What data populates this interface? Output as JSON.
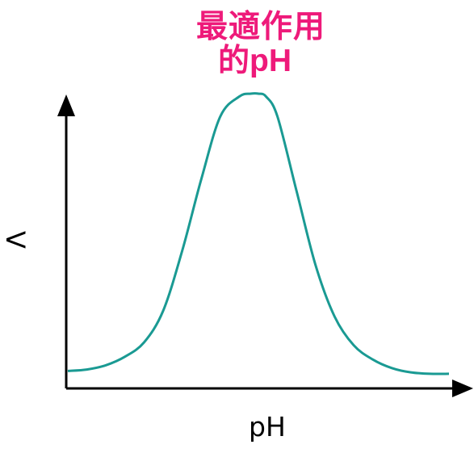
{
  "chart_data": {
    "type": "line",
    "annotation": {
      "line1": "最適作用",
      "line2_prefix": "的",
      "line2_latin": "pH"
    },
    "xlabel": "pH",
    "ylabel": "V",
    "series_color": "#1a9a93",
    "annotation_color": "#ee1a7a",
    "axis_color": "#000000",
    "x_range": [
      0,
      1
    ],
    "y_range": [
      0,
      1
    ],
    "series": [
      {
        "x": [
          0.0,
          0.05,
          0.1,
          0.15,
          0.2,
          0.25,
          0.3,
          0.35,
          0.4,
          0.45,
          0.48,
          0.5,
          0.52,
          0.55,
          0.6,
          0.65,
          0.7,
          0.75,
          0.8,
          0.85,
          0.9,
          0.95,
          1.0
        ],
        "y": [
          0.03,
          0.035,
          0.05,
          0.08,
          0.13,
          0.24,
          0.45,
          0.7,
          0.92,
          0.99,
          1.0,
          1.0,
          0.99,
          0.92,
          0.66,
          0.4,
          0.22,
          0.12,
          0.07,
          0.04,
          0.025,
          0.02,
          0.02
        ]
      }
    ]
  }
}
